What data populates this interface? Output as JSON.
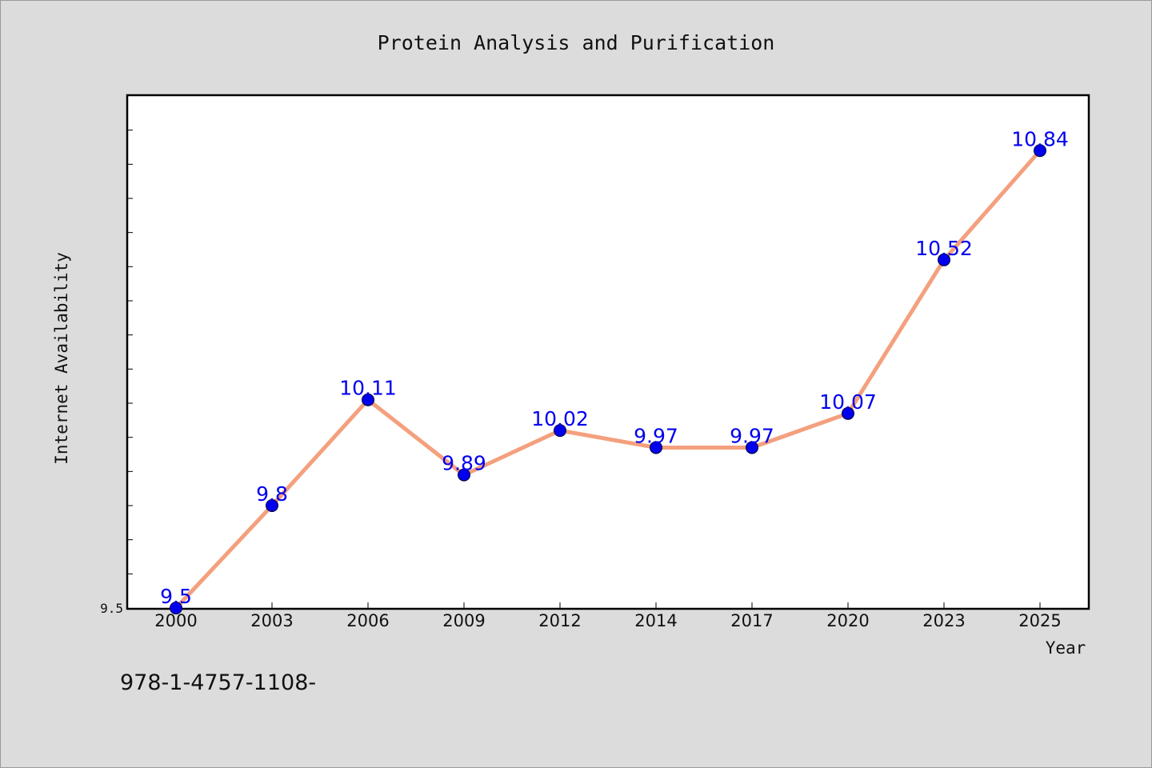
{
  "chart_data": {
    "type": "line",
    "title": "Protein Analysis and Purification",
    "xlabel": "Year",
    "ylabel": "Internet Availability",
    "categories": [
      "2000",
      "2003",
      "2006",
      "2009",
      "2012",
      "2014",
      "2017",
      "2020",
      "2023",
      "2025"
    ],
    "series": [
      {
        "values": [
          9.5,
          9.8,
          10.11,
          9.89,
          10.02,
          9.97,
          9.97,
          10.07,
          10.52,
          10.84
        ],
        "data_labels": [
          "9.5",
          "9.8",
          "10.11",
          "9.89",
          "10.02",
          "9.97",
          "9.97",
          "10.07",
          "10.52",
          "10.84"
        ]
      }
    ],
    "ylim": [
      9.5,
      11.0
    ],
    "y_tick_labels": [
      "9.5"
    ],
    "grid": false,
    "legend": "none"
  },
  "footnote": "978-1-4757-1108-",
  "colors": {
    "background": "#dcdcdc",
    "plot_background": "#ffffff",
    "line": "#f4a07e",
    "marker": "#0000ee",
    "data_label": "#0000ee"
  }
}
